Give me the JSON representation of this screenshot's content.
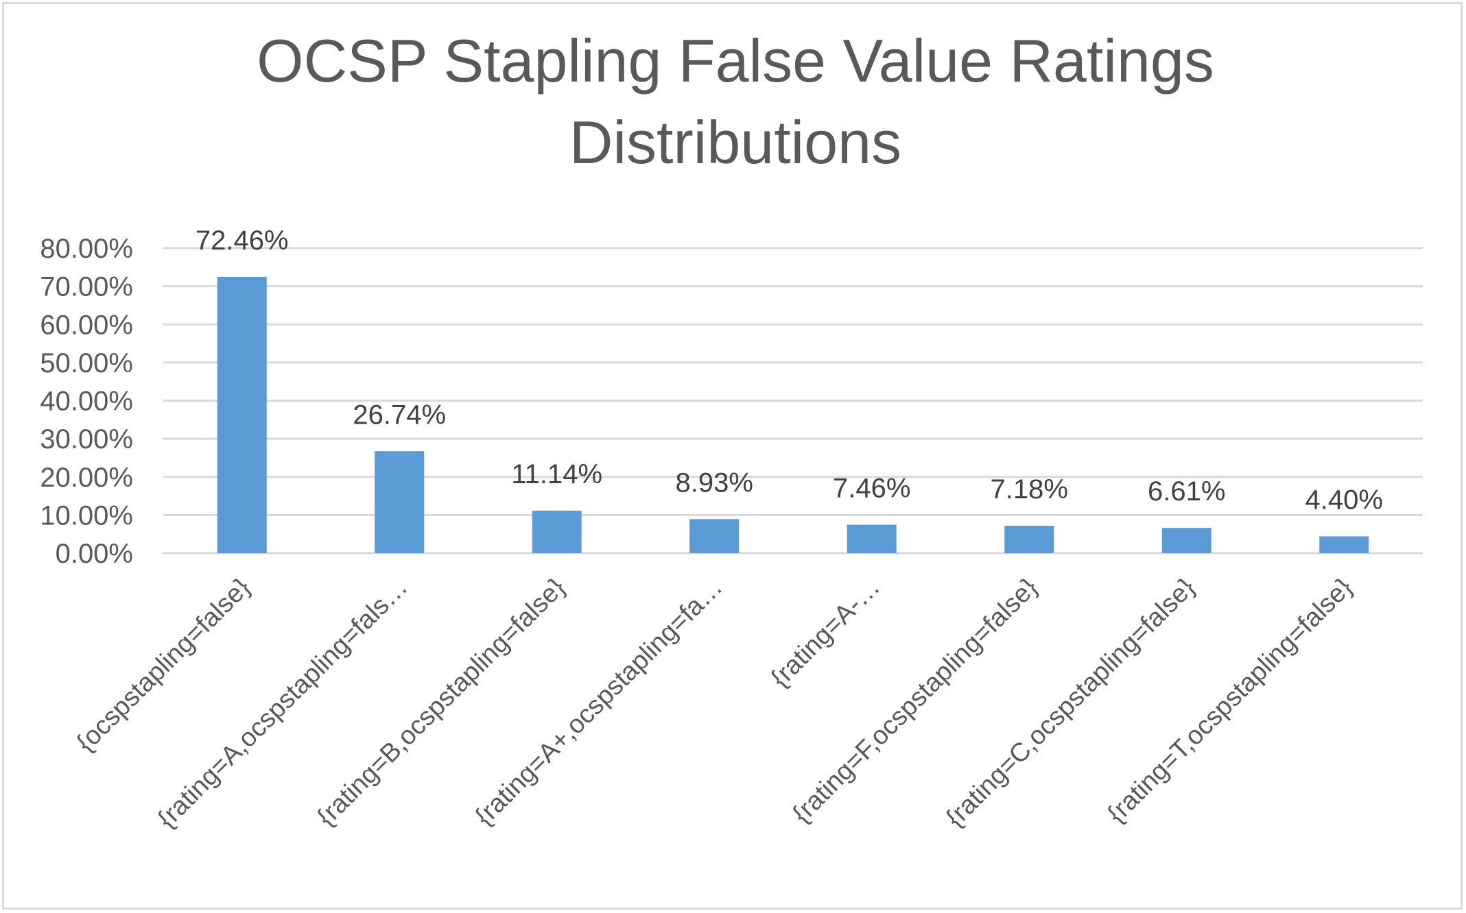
{
  "chart_data": {
    "type": "bar",
    "title_lines": [
      "OCSP Stapling False Value Ratings",
      "Distributions"
    ],
    "categories": [
      "{ocspstapling=false}",
      "{rating=A,ocspstapling=fals…",
      "{rating=B,ocspstapling=false}",
      "{rating=A+,ocspstapling=fa…",
      "{rating=A-…",
      "{rating=F,ocspstapling=false}",
      "{rating=C,ocspstapling=false}",
      "{rating=T,ocspstapling=false}"
    ],
    "values": [
      72.46,
      26.74,
      11.14,
      8.93,
      7.46,
      7.18,
      6.61,
      4.4
    ],
    "data_labels": [
      "72.46%",
      "26.74%",
      "11.14%",
      "8.93%",
      "7.46%",
      "7.18%",
      "6.61%",
      "4.40%"
    ],
    "y_ticks": [
      0,
      10,
      20,
      30,
      40,
      50,
      60,
      70,
      80
    ],
    "y_tick_labels": [
      "0.00%",
      "10.00%",
      "20.00%",
      "30.00%",
      "40.00%",
      "50.00%",
      "60.00%",
      "70.00%",
      "80.00%"
    ],
    "ylim": [
      0,
      80
    ],
    "grid": true,
    "legend": false,
    "colors": {
      "bar": "#5b9bd5",
      "grid": "#d9d9d9",
      "text": "#595959"
    }
  }
}
